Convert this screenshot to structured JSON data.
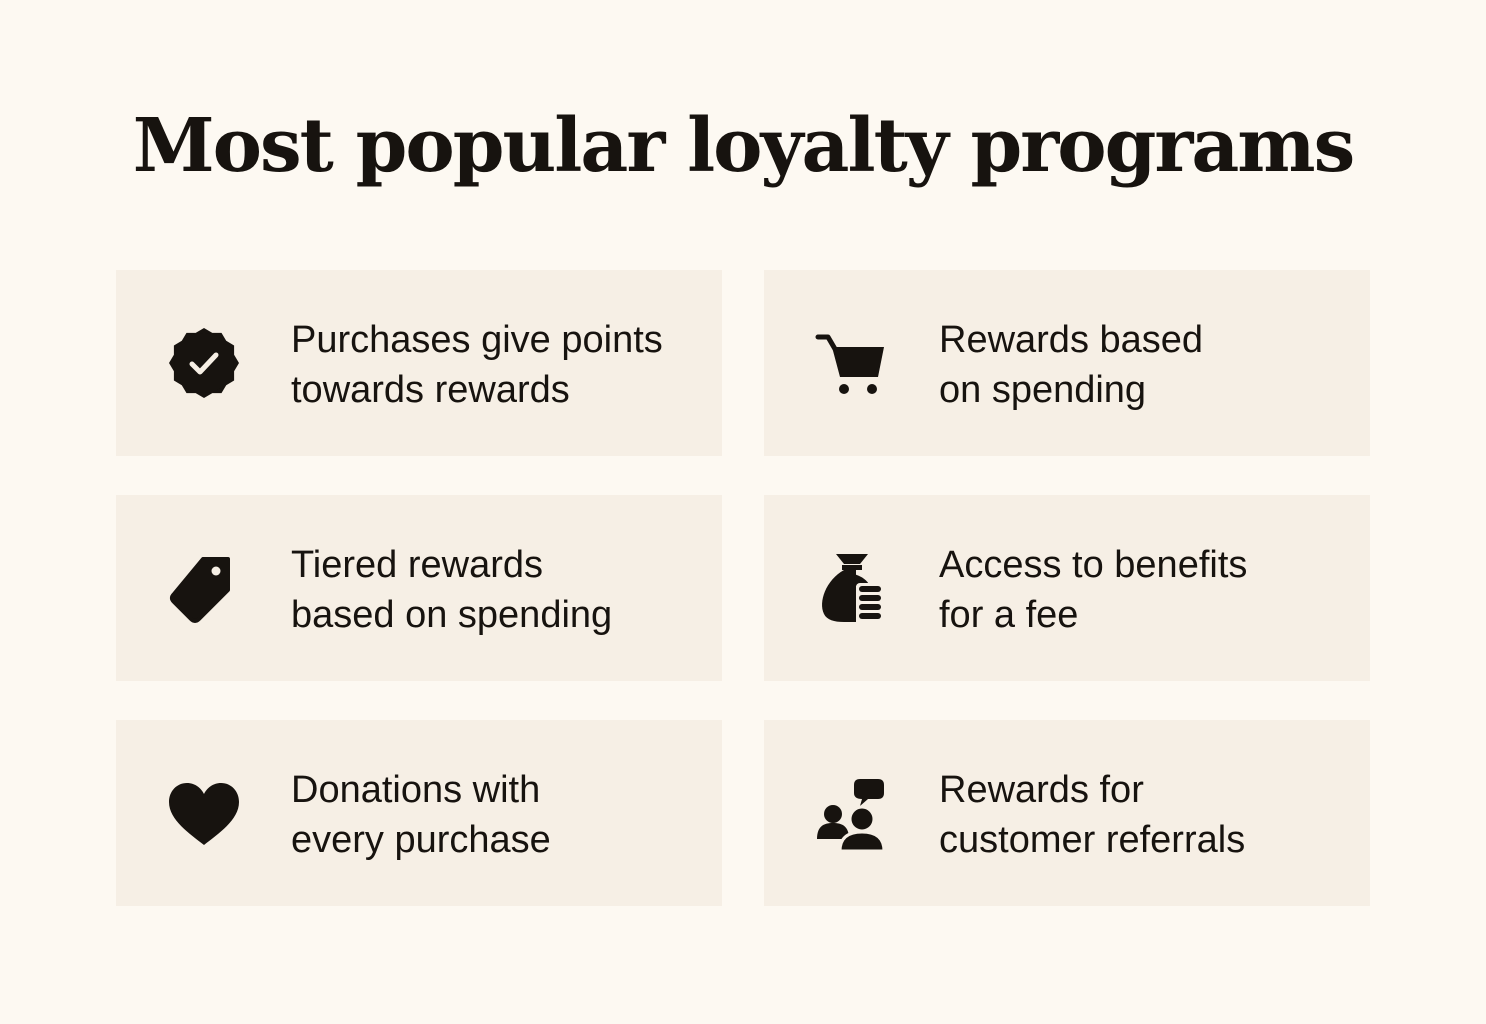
{
  "title": "Most popular loyalty programs",
  "colors": {
    "background": "#fdf9f2",
    "card": "#f6efe5",
    "text": "#17130f"
  },
  "programs": [
    {
      "icon": "verified-badge-icon",
      "lines": [
        "Purchases give points",
        "towards rewards"
      ]
    },
    {
      "icon": "shopping-cart-icon",
      "lines": [
        "Rewards based",
        "on spending"
      ]
    },
    {
      "icon": "price-tag-icon",
      "lines": [
        "Tiered rewards",
        "based on spending"
      ]
    },
    {
      "icon": "money-bag-coins-icon",
      "lines": [
        "Access to benefits",
        "for a fee"
      ]
    },
    {
      "icon": "heart-icon",
      "lines": [
        "Donations with",
        "every purchase"
      ]
    },
    {
      "icon": "people-chat-icon",
      "lines": [
        "Rewards for",
        "customer referrals"
      ]
    }
  ]
}
